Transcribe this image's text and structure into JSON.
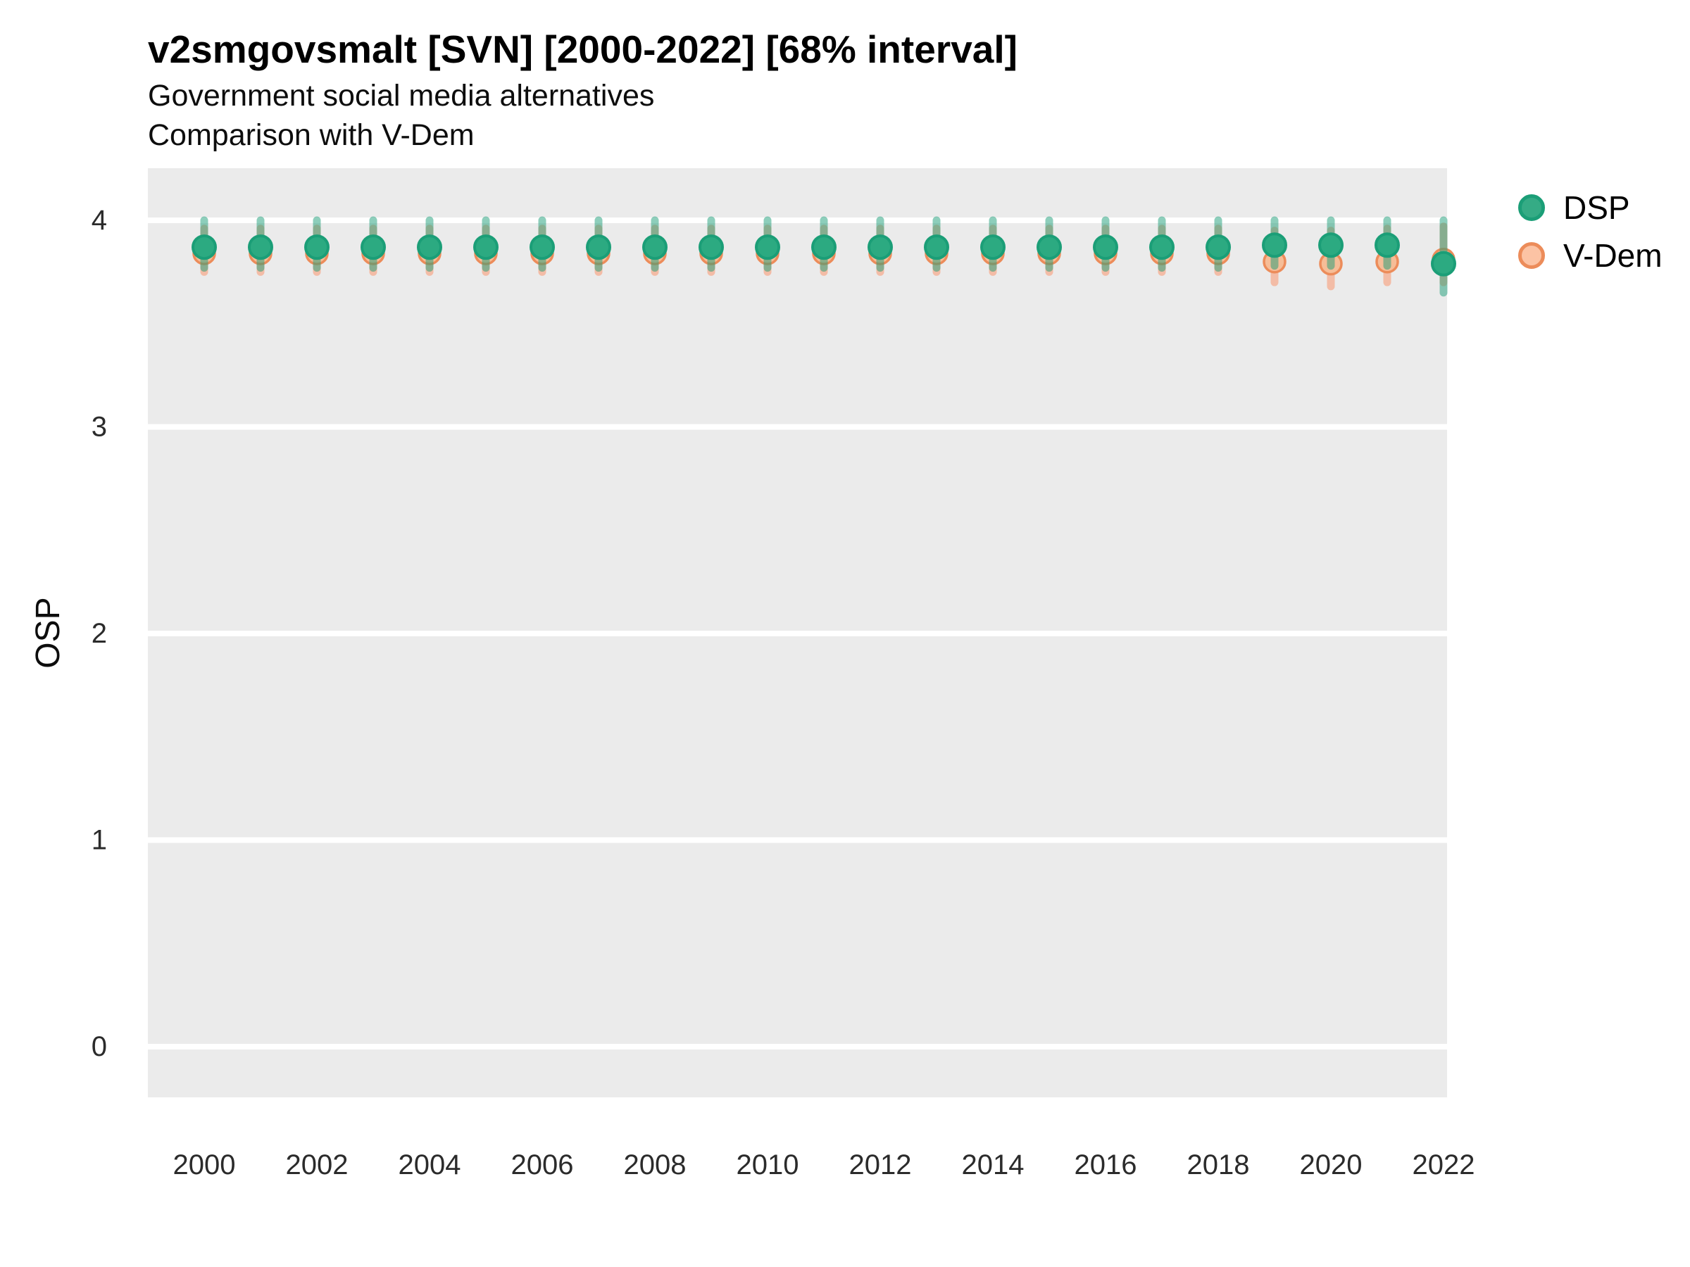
{
  "page": {
    "title": "v2smgovsmalt [SVN] [2000-2022] [68% interval]",
    "subtitle_line1": "Government social media alternatives",
    "subtitle_line2": "Comparison with V-Dem"
  },
  "legend": {
    "position": "right",
    "items": [
      {
        "label": "DSP",
        "fill": "#35ab85",
        "stroke": "#1b9e77"
      },
      {
        "label": "V-Dem",
        "fill": "#fcc3a4",
        "stroke": "#ec8c5a"
      }
    ]
  },
  "colors": {
    "panel_bg": "#ebebeb",
    "gridline": "#ffffff",
    "dsp_point_fill": "#2caa81",
    "dsp_point_stroke": "#1b9e77",
    "dsp_errorbar": "rgba(27,158,119,0.5)",
    "vdem_point_fill": "#f6bd97",
    "vdem_point_stroke": "#ec8c5a",
    "vdem_errorbar": "rgba(252,141,98,0.5)",
    "tick_text": "#2b2b2b"
  },
  "chart_data": {
    "type": "scatter",
    "title": "v2smgovsmalt [SVN] [2000-2022] [68% interval]",
    "subtitle": "Government social media alternatives — Comparison with V-Dem",
    "xlabel": "",
    "ylabel": "OSP",
    "ylim": [
      -0.25,
      4.25
    ],
    "yticks": [
      0,
      1,
      2,
      3,
      4
    ],
    "xticks": [
      2000,
      2002,
      2004,
      2006,
      2008,
      2010,
      2012,
      2014,
      2016,
      2018,
      2020,
      2022
    ],
    "grid": "major-horizontal-only",
    "legend_position": "right",
    "interval": "68%",
    "x": [
      2000,
      2001,
      2002,
      2003,
      2004,
      2005,
      2006,
      2007,
      2008,
      2009,
      2010,
      2011,
      2012,
      2013,
      2014,
      2015,
      2016,
      2017,
      2018,
      2019,
      2020,
      2021,
      2022
    ],
    "series": [
      {
        "name": "V-Dem",
        "values": [
          3.84,
          3.84,
          3.84,
          3.84,
          3.84,
          3.84,
          3.84,
          3.84,
          3.84,
          3.84,
          3.84,
          3.84,
          3.84,
          3.84,
          3.84,
          3.84,
          3.84,
          3.84,
          3.84,
          3.8,
          3.79,
          3.8,
          3.81
        ],
        "lo": [
          3.75,
          3.75,
          3.75,
          3.75,
          3.75,
          3.75,
          3.75,
          3.75,
          3.75,
          3.75,
          3.75,
          3.75,
          3.75,
          3.75,
          3.75,
          3.75,
          3.75,
          3.75,
          3.75,
          3.7,
          3.68,
          3.7,
          3.7
        ],
        "hi": [
          3.96,
          3.96,
          3.96,
          3.96,
          3.96,
          3.96,
          3.96,
          3.96,
          3.96,
          3.96,
          3.96,
          3.96,
          3.96,
          3.96,
          3.96,
          3.96,
          3.96,
          3.96,
          3.96,
          3.95,
          3.95,
          3.96,
          3.97
        ]
      },
      {
        "name": "DSP",
        "values": [
          3.87,
          3.87,
          3.87,
          3.87,
          3.87,
          3.87,
          3.87,
          3.87,
          3.87,
          3.87,
          3.87,
          3.87,
          3.87,
          3.87,
          3.87,
          3.87,
          3.87,
          3.87,
          3.87,
          3.88,
          3.88,
          3.88,
          3.79
        ],
        "lo": [
          3.77,
          3.77,
          3.77,
          3.77,
          3.77,
          3.77,
          3.77,
          3.77,
          3.77,
          3.77,
          3.77,
          3.77,
          3.77,
          3.77,
          3.77,
          3.77,
          3.77,
          3.77,
          3.77,
          3.78,
          3.78,
          3.78,
          3.65
        ],
        "hi": [
          4.0,
          4.0,
          4.0,
          4.0,
          4.0,
          4.0,
          4.0,
          4.0,
          4.0,
          4.0,
          4.0,
          4.0,
          4.0,
          4.0,
          4.0,
          4.0,
          4.0,
          4.0,
          4.0,
          4.0,
          4.0,
          4.0,
          4.0
        ]
      }
    ]
  }
}
